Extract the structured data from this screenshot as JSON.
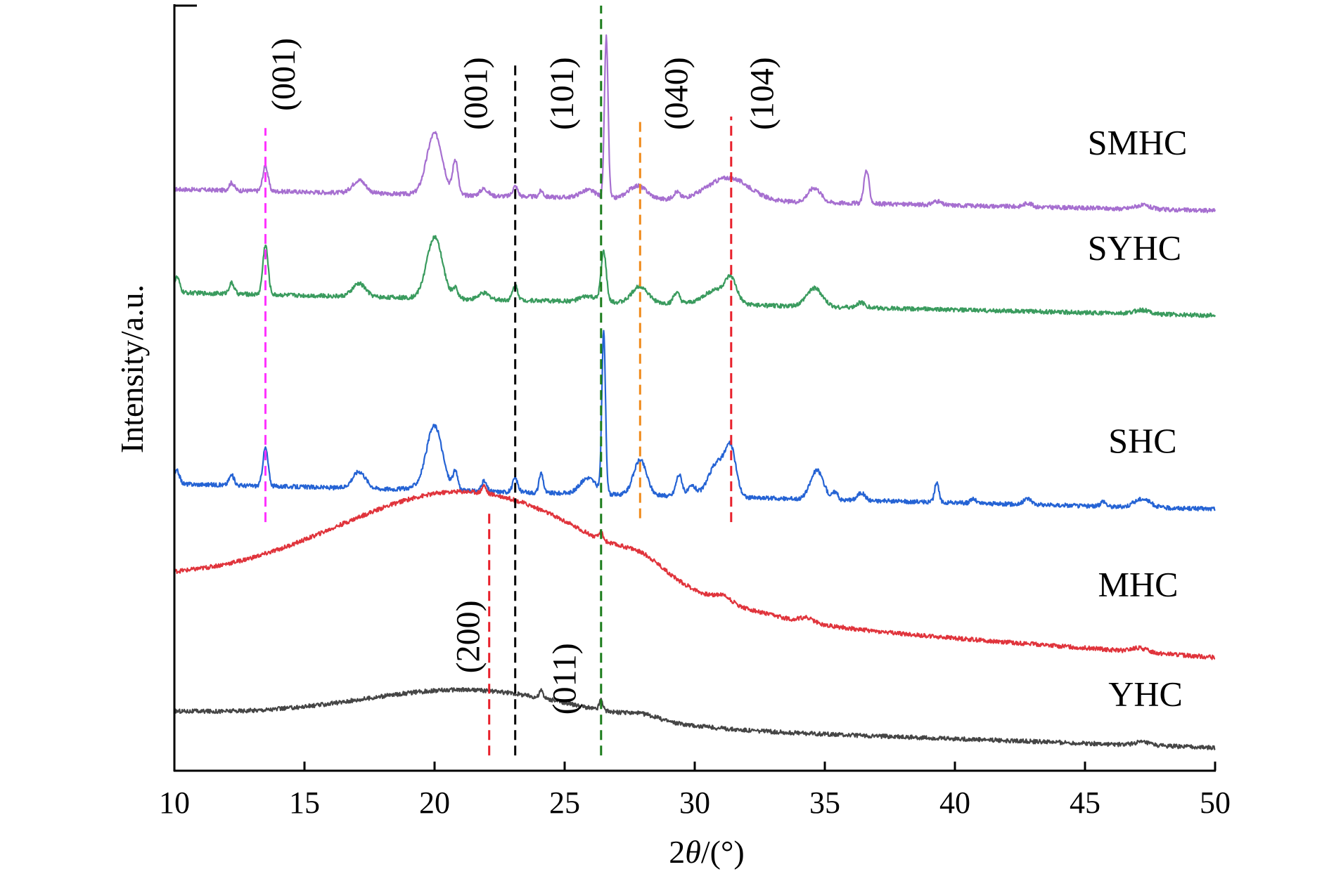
{
  "chart_data": {
    "type": "line",
    "xlabel_prefix": "2",
    "xlabel_var": "θ",
    "xlabel_suffix": "/(°)",
    "ylabel": "Intensity/a.u.",
    "xlim": [
      10,
      50
    ],
    "ylim": [
      0,
      100
    ],
    "x_ticks": [
      10,
      15,
      20,
      25,
      30,
      35,
      40,
      45,
      50
    ],
    "x_tick_labels": [
      "10",
      "15",
      "20",
      "25",
      "30",
      "35",
      "40",
      "45",
      "50"
    ],
    "grid": false,
    "series": [
      {
        "name": "SMHC",
        "color": "#a66fd0",
        "baseline": 76,
        "baseline_end": 73.2,
        "humps": [
          [
            20,
            8,
            0.3
          ]
        ],
        "peaks": [
          [
            12.2,
            1,
            0.1
          ],
          [
            13.5,
            3.3,
            0.1
          ],
          [
            17.1,
            1.7,
            0.25
          ],
          [
            20.8,
            4.5,
            0.1
          ],
          [
            21.9,
            0.9,
            0.15
          ],
          [
            23.1,
            1.3,
            0.1
          ],
          [
            24.1,
            0.8,
            0.08
          ],
          [
            25.9,
            1,
            0.3
          ],
          [
            26.6,
            21,
            0.07
          ],
          [
            27.8,
            1.7,
            0.35
          ],
          [
            29.3,
            0.9,
            0.12
          ],
          [
            31.3,
            3,
            0.8
          ],
          [
            34.6,
            1.9,
            0.25
          ],
          [
            36.6,
            4.3,
            0.1
          ],
          [
            39.3,
            0.5,
            0.15
          ],
          [
            42.8,
            0.5,
            0.15
          ],
          [
            47.2,
            0.5,
            0.3
          ]
        ]
      },
      {
        "name": "SYHC",
        "color": "#3a9b5e",
        "baseline": 62.5,
        "baseline_end": 59.5,
        "humps": [
          [
            20,
            8,
            0.3
          ]
        ],
        "peaks": [
          [
            10.1,
            2,
            0.1
          ],
          [
            12.2,
            1.4,
            0.1
          ],
          [
            13.5,
            6.5,
            0.1
          ],
          [
            17.1,
            1.7,
            0.25
          ],
          [
            20.8,
            1.3,
            0.1
          ],
          [
            21.9,
            0.8,
            0.2
          ],
          [
            23.1,
            1.9,
            0.1
          ],
          [
            25.9,
            0.7,
            0.3
          ],
          [
            26.5,
            6.5,
            0.1
          ],
          [
            27.9,
            2.2,
            0.3
          ],
          [
            29.3,
            1.4,
            0.12
          ],
          [
            30.9,
            2,
            0.5
          ],
          [
            31.4,
            2.5,
            0.2
          ],
          [
            34.6,
            2.4,
            0.3
          ],
          [
            36.4,
            0.7,
            0.15
          ],
          [
            47.2,
            0.5,
            0.3
          ]
        ]
      },
      {
        "name": "SHC",
        "color": "#2563d4",
        "baseline": 37.5,
        "baseline_end": 34.2,
        "humps": [
          [
            20,
            8,
            0.3
          ]
        ],
        "peaks": [
          [
            10.1,
            1.7,
            0.1
          ],
          [
            12.2,
            1.3,
            0.1
          ],
          [
            13.5,
            5,
            0.1
          ],
          [
            17.1,
            2.2,
            0.25
          ],
          [
            19.7,
            0.5,
            0.5
          ],
          [
            20.8,
            2.3,
            0.1
          ],
          [
            21.9,
            1.3,
            0.1
          ],
          [
            23.1,
            1.8,
            0.1
          ],
          [
            24.1,
            2.6,
            0.08
          ],
          [
            25.9,
            2.1,
            0.3
          ],
          [
            26.5,
            21,
            0.07
          ],
          [
            27.9,
            4.6,
            0.25
          ],
          [
            29.4,
            2.8,
            0.12
          ],
          [
            29.9,
            1.3,
            0.15
          ],
          [
            30.9,
            4.6,
            0.35
          ],
          [
            31.4,
            5.2,
            0.2
          ],
          [
            34.7,
            3.8,
            0.25
          ],
          [
            35.4,
            1,
            0.1
          ],
          [
            36.4,
            1,
            0.15
          ],
          [
            39.3,
            2.6,
            0.08
          ],
          [
            40.7,
            0.6,
            0.1
          ],
          [
            42.8,
            0.8,
            0.15
          ],
          [
            45.7,
            0.7,
            0.1
          ],
          [
            47.2,
            1.1,
            0.3
          ]
        ]
      },
      {
        "name": "MHC",
        "color": "#e0343c",
        "baseline": 24.8,
        "baseline_end": 14.8,
        "humps": [
          [
            21.5,
            14.5,
            5.2
          ],
          [
            28,
            1.5,
            0.8
          ],
          [
            31.1,
            0.8,
            0.3
          ],
          [
            34.3,
            0.6,
            0.25
          ],
          [
            47.1,
            0.5,
            0.3
          ]
        ],
        "peaks": [
          [
            21.9,
            1,
            0.08
          ],
          [
            26.4,
            1,
            0.08
          ]
        ]
      },
      {
        "name": "YHC",
        "color": "#454545",
        "baseline": 7.7,
        "baseline_end": 3,
        "humps": [
          [
            21.5,
            4.2,
            4.2
          ],
          [
            28,
            0.6,
            0.6
          ],
          [
            47.2,
            0.4,
            0.3
          ]
        ],
        "peaks": [
          [
            24.1,
            1,
            0.07
          ],
          [
            26.4,
            1.4,
            0.07
          ]
        ]
      }
    ],
    "reference_lines": [
      {
        "x": 13.5,
        "color": "#ff33ff",
        "y_range": [
          32.5,
          84
        ]
      },
      {
        "x": 22.1,
        "color": "#e8202b",
        "y_range": [
          2,
          34
        ]
      },
      {
        "x": 23.1,
        "color": "#000000",
        "y_range": [
          2,
          92.5
        ]
      },
      {
        "x": 26.4,
        "color": "#1b7c1b",
        "y_range": [
          2,
          100
        ]
      },
      {
        "x": 27.9,
        "color": "#f08a1b",
        "y_range": [
          33,
          85
        ]
      },
      {
        "x": 31.4,
        "color": "#e8202b",
        "y_range": [
          32.5,
          85.5
        ]
      }
    ],
    "peak_labels": [
      {
        "text": "(001)",
        "x": 14.2,
        "y": 91
      },
      {
        "text": "(001)",
        "x": 21.6,
        "y": 88.5
      },
      {
        "text": "(101)",
        "x": 24.9,
        "y": 88.5
      },
      {
        "text": "(040)",
        "x": 29.3,
        "y": 88.5
      },
      {
        "text": "(104)",
        "x": 32.6,
        "y": 88.5
      },
      {
        "text": "(200)",
        "x": 21.3,
        "y": 17.5
      },
      {
        "text": "(011)",
        "x": 25.0,
        "y": 12
      }
    ],
    "series_labels": [
      {
        "text": "SMHC",
        "x": 45.1,
        "y": 80.6
      },
      {
        "text": "SYHC",
        "x": 45.1,
        "y": 66.8
      },
      {
        "text": "SHC",
        "x": 45.9,
        "y": 41.6
      },
      {
        "text": "MHC",
        "x": 45.5,
        "y": 22.8
      },
      {
        "text": "YHC",
        "x": 45.9,
        "y": 8.5
      }
    ]
  }
}
